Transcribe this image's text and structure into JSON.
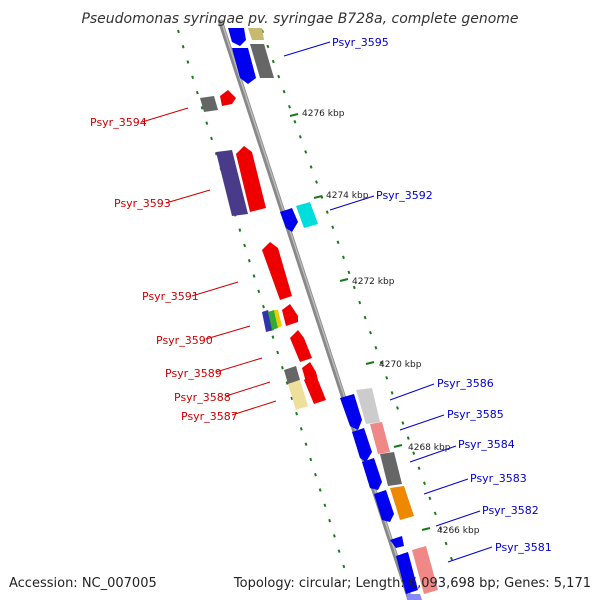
{
  "title": "Pseudomonas syringae pv. syringae B728a, complete genome",
  "footer": {
    "accession": "Accession: NC_007005",
    "summary": "Topology: circular; Length: 6,093,698 bp; Genes: 5,171"
  },
  "kbp_marks": [
    {
      "label": "4276 kbp"
    },
    {
      "label": "4274 kbp"
    },
    {
      "label": "4272 kbp"
    },
    {
      "label": "4270 kbp"
    },
    {
      "label": "4268 kbp"
    },
    {
      "label": "4266 kbp"
    }
  ],
  "genes_left": [
    {
      "label": "Psyr_3594"
    },
    {
      "label": "Psyr_3593"
    },
    {
      "label": "Psyr_3591"
    },
    {
      "label": "Psyr_3590"
    },
    {
      "label": "Psyr_3589"
    },
    {
      "label": "Psyr_3588"
    },
    {
      "label": "Psyr_3587"
    }
  ],
  "genes_right": [
    {
      "label": "Psyr_3595"
    },
    {
      "label": "Psyr_3592"
    },
    {
      "label": "Psyr_3586"
    },
    {
      "label": "Psyr_3585"
    },
    {
      "label": "Psyr_3584"
    },
    {
      "label": "Psyr_3583"
    },
    {
      "label": "Psyr_3582"
    },
    {
      "label": "Psyr_3581"
    }
  ],
  "colors": {
    "backbone": "#8a8a8a",
    "forward_cds": "#ee0000",
    "reverse_cds": "#0000ee",
    "gc_dash": "#1a7a1a",
    "left_label": "#cc0000",
    "right_label": "#0000cc"
  }
}
